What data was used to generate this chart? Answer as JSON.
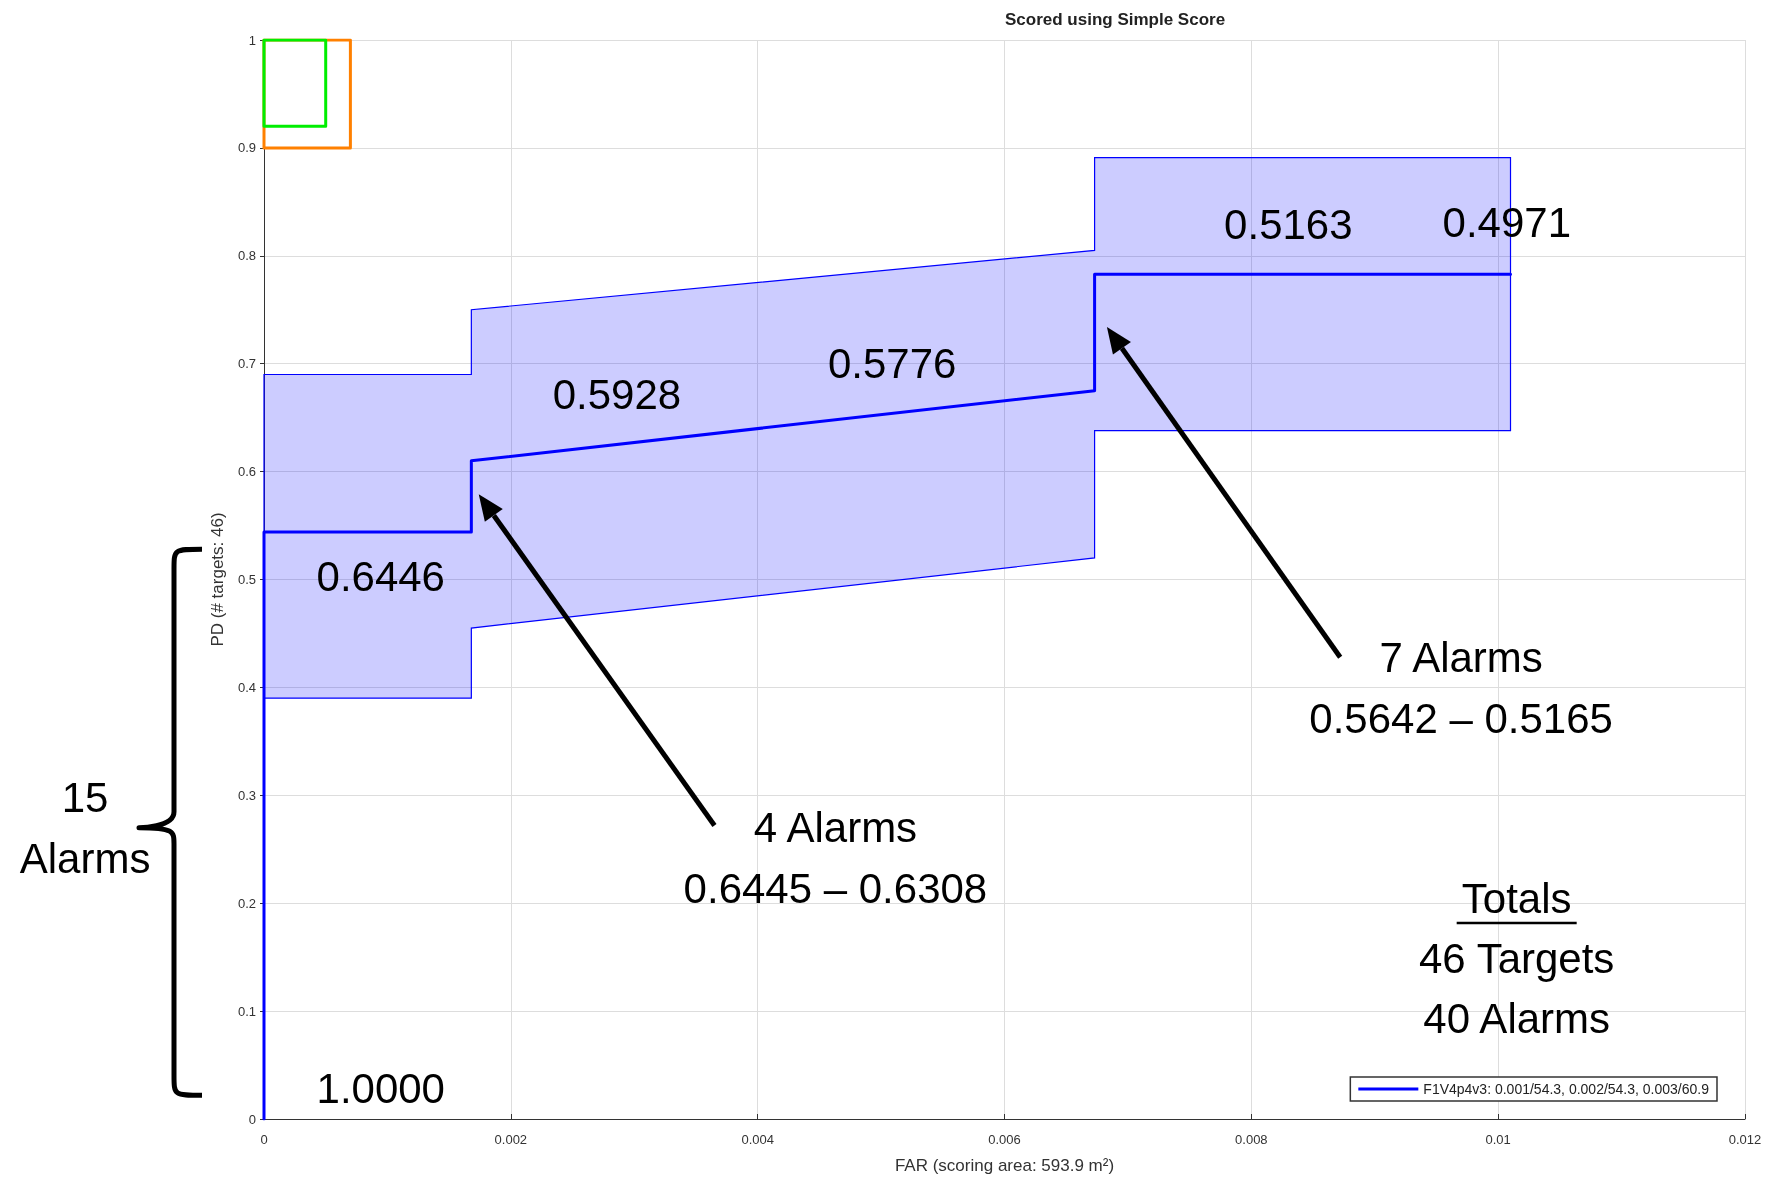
{
  "chart_data": {
    "type": "line",
    "title": "Scored using Simple Score",
    "xlabel": "FAR (scoring area: 593.9 m²)",
    "ylabel": "PD (# targets: 46)",
    "xlim": [
      0,
      0.012
    ],
    "xticks": [
      0,
      0.002,
      0.004,
      0.006,
      0.008,
      0.01,
      0.012
    ],
    "ylim": [
      0,
      1
    ],
    "yticks": [
      0,
      0.1,
      0.2,
      0.3,
      0.4,
      0.5,
      0.6,
      0.7,
      0.8,
      0.9,
      1
    ],
    "grid": true,
    "legend": "bottom right",
    "marker": "none",
    "line_style": "solid",
    "series": [
      {
        "name": "F1V4p4v3: 0.001/54.3, 0.002/54.3, 0.003/60.9",
        "color": "#0000ff",
        "x": [
          0,
          0,
          0.00168,
          0.00168,
          0.00673,
          0.00673,
          0.0101
        ],
        "values": [
          0,
          0.544,
          0.544,
          0.61,
          0.675,
          0.783,
          0.783
        ],
        "lower": [
          null,
          0.39,
          0.39,
          0.455,
          0.52,
          0.638,
          0.638
        ],
        "upper": [
          null,
          0.69,
          0.69,
          0.75,
          0.805,
          0.891,
          0.891
        ]
      },
      {
        "color": "#00ee00",
        "x": [
          0,
          0,
          0.0005,
          0.0005,
          null,
          0,
          0.0005
        ],
        "values": [
          0.92,
          1,
          1,
          0.92,
          null,
          0.92,
          0.92
        ]
      },
      {
        "color": "#ff8000",
        "x": [
          0,
          0,
          0.0007,
          0.0007,
          null,
          0,
          0.0007
        ],
        "values": [
          0.9,
          1,
          1,
          0.9,
          null,
          0.9,
          0.9
        ]
      }
    ],
    "annotations": [
      "1.0000",
      "0.6446",
      "0.5928",
      "0.5776",
      "0.5163",
      "0.4971",
      "4 Alarms\n0.6445 – 0.6308",
      "7 Alarms\n0.5642 – 0.5165",
      "Totals",
      "46 Targets",
      "40 Alarms",
      "15\nAlarms"
    ]
  }
}
